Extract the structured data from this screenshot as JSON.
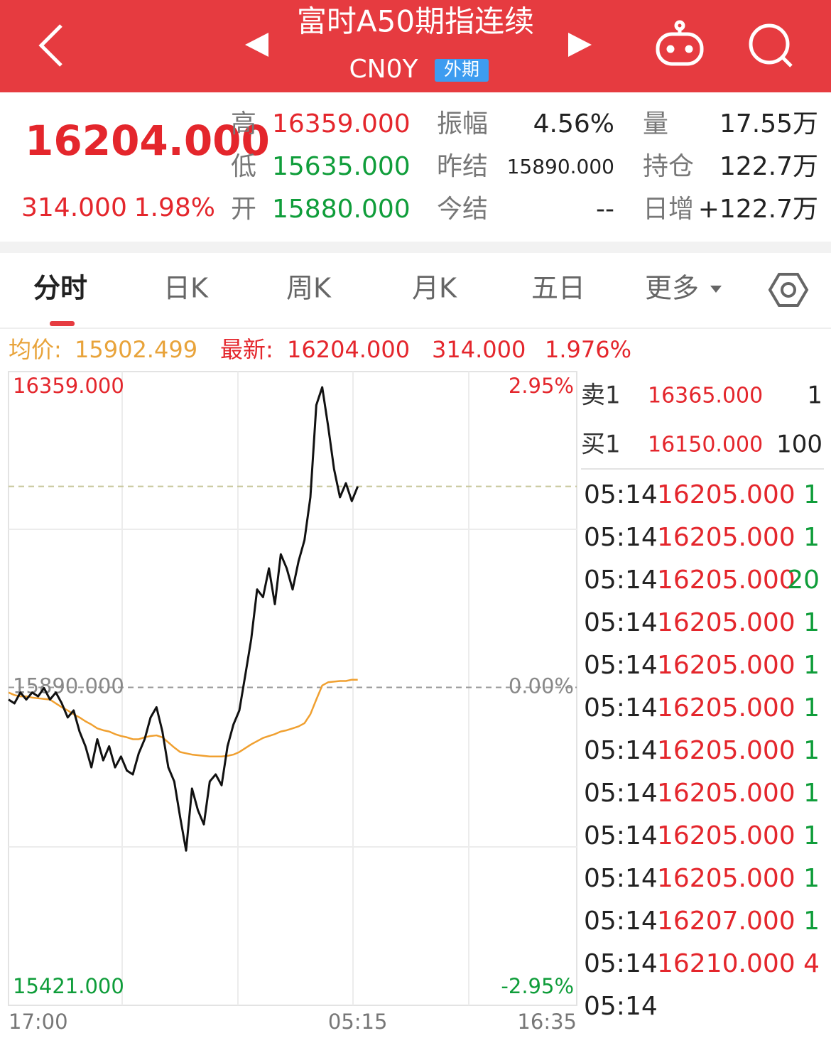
{
  "header": {
    "title": "富时A50期指连续",
    "code": "CN0Y",
    "badge": "外期"
  },
  "quote": {
    "price": "16204.000",
    "change": "314.000",
    "change_pct": "1.98%",
    "fields": [
      {
        "label": "高",
        "value": "16359.000",
        "color": "#e4262c"
      },
      {
        "label": "低",
        "value": "15635.000",
        "color": "#0f9d3a"
      },
      {
        "label": "开",
        "value": "15880.000",
        "color": "#0f9d3a"
      },
      {
        "label": "振幅",
        "value": "4.56%",
        "color": "#222222"
      },
      {
        "label": "昨结",
        "value": "15890.000",
        "color": "#222222"
      },
      {
        "label": "今结",
        "value": "--",
        "color": "#222222"
      },
      {
        "label": "量",
        "value": "17.55万",
        "color": "#222222"
      },
      {
        "label": "持仓",
        "value": "122.7万",
        "color": "#222222"
      },
      {
        "label": "日增",
        "value": "+122.7万",
        "color": "#222222"
      }
    ]
  },
  "tabs": [
    "分时",
    "日K",
    "周K",
    "月K",
    "五日",
    "更多"
  ],
  "info": {
    "avg_label": "均价:",
    "avg": "15902.499",
    "latest_label": "最新:",
    "latest": "16204.000",
    "change": "314.000",
    "change_pct": "1.976%"
  },
  "chart_data": {
    "type": "line",
    "xlim": [
      0,
      96
    ],
    "xticks": [
      {
        "value": 0,
        "label": "17:00"
      },
      {
        "value": 59,
        "label": "05:15"
      },
      {
        "value": 96,
        "label": "16:35"
      }
    ],
    "ylim": [
      15421,
      16359
    ],
    "yticks": [
      {
        "value": 15421,
        "label": "15421.000"
      },
      {
        "value": 15890,
        "label": "15890.000"
      },
      {
        "value": 16359,
        "label": "16359.000"
      }
    ],
    "y2lim": [
      -2.95,
      2.95
    ],
    "y2ticks": [
      {
        "value": -2.95,
        "label": "-2.95%"
      },
      {
        "value": 0,
        "label": "0.00%"
      },
      {
        "value": 2.95,
        "label": "2.95%"
      }
    ],
    "series": [
      {
        "color": "#111111",
        "values": [
          15871,
          15865,
          15882,
          15871,
          15882,
          15876,
          15889,
          15871,
          15882,
          15865,
          15843,
          15854,
          15821,
          15798,
          15765,
          15809,
          15776,
          15798,
          15765,
          15782,
          15760,
          15754,
          15787,
          15809,
          15843,
          15859,
          15821,
          15765,
          15743,
          15687,
          15635,
          15732,
          15698,
          15676,
          15743,
          15754,
          15737,
          15798,
          15832,
          15854,
          15909,
          15965,
          16043,
          16031,
          16076,
          16020,
          16098,
          16076,
          16043,
          16087,
          16120,
          16187,
          16331,
          16359,
          16298,
          16231,
          16187,
          16209,
          16181,
          16204
        ]
      },
      {
        "color": "#f0a030",
        "values": [
          15882,
          15878,
          15876,
          15876,
          15874,
          15873,
          15872,
          15871,
          15865,
          15859,
          15854,
          15848,
          15843,
          15837,
          15832,
          15826,
          15823,
          15821,
          15817,
          15814,
          15812,
          15809,
          15809,
          15812,
          15814,
          15815,
          15812,
          15804,
          15796,
          15789,
          15787,
          15785,
          15784,
          15783,
          15782,
          15782,
          15782,
          15783,
          15785,
          15789,
          15795,
          15801,
          15806,
          15811,
          15814,
          15817,
          15821,
          15823,
          15826,
          15829,
          15834,
          15848,
          15871,
          15893,
          15898,
          15899,
          15900,
          15900,
          15902,
          15902
        ]
      }
    ]
  },
  "order_book": [
    {
      "side": "卖1",
      "price": "16365.000",
      "volume": "1"
    },
    {
      "side": "买1",
      "price": "16150.000",
      "volume": "100"
    }
  ],
  "trades": [
    {
      "time": "05:14",
      "price": "16205.000",
      "volume": "1",
      "color": "#0f9d3a"
    },
    {
      "time": "05:14",
      "price": "16205.000",
      "volume": "1",
      "color": "#0f9d3a"
    },
    {
      "time": "05:14",
      "price": "16205.000",
      "volume": "20",
      "color": "#0f9d3a"
    },
    {
      "time": "05:14",
      "price": "16205.000",
      "volume": "1",
      "color": "#0f9d3a"
    },
    {
      "time": "05:14",
      "price": "16205.000",
      "volume": "1",
      "color": "#0f9d3a"
    },
    {
      "time": "05:14",
      "price": "16205.000",
      "volume": "1",
      "color": "#0f9d3a"
    },
    {
      "time": "05:14",
      "price": "16205.000",
      "volume": "1",
      "color": "#0f9d3a"
    },
    {
      "time": "05:14",
      "price": "16205.000",
      "volume": "1",
      "color": "#0f9d3a"
    },
    {
      "time": "05:14",
      "price": "16205.000",
      "volume": "1",
      "color": "#0f9d3a"
    },
    {
      "time": "05:14",
      "price": "16205.000",
      "volume": "1",
      "color": "#0f9d3a"
    },
    {
      "time": "05:14",
      "price": "16207.000",
      "volume": "1",
      "color": "#0f9d3a"
    },
    {
      "time": "05:14",
      "price": "16210.000",
      "volume": "4",
      "color": "#e4262c"
    },
    {
      "time": "05:14"
    }
  ]
}
